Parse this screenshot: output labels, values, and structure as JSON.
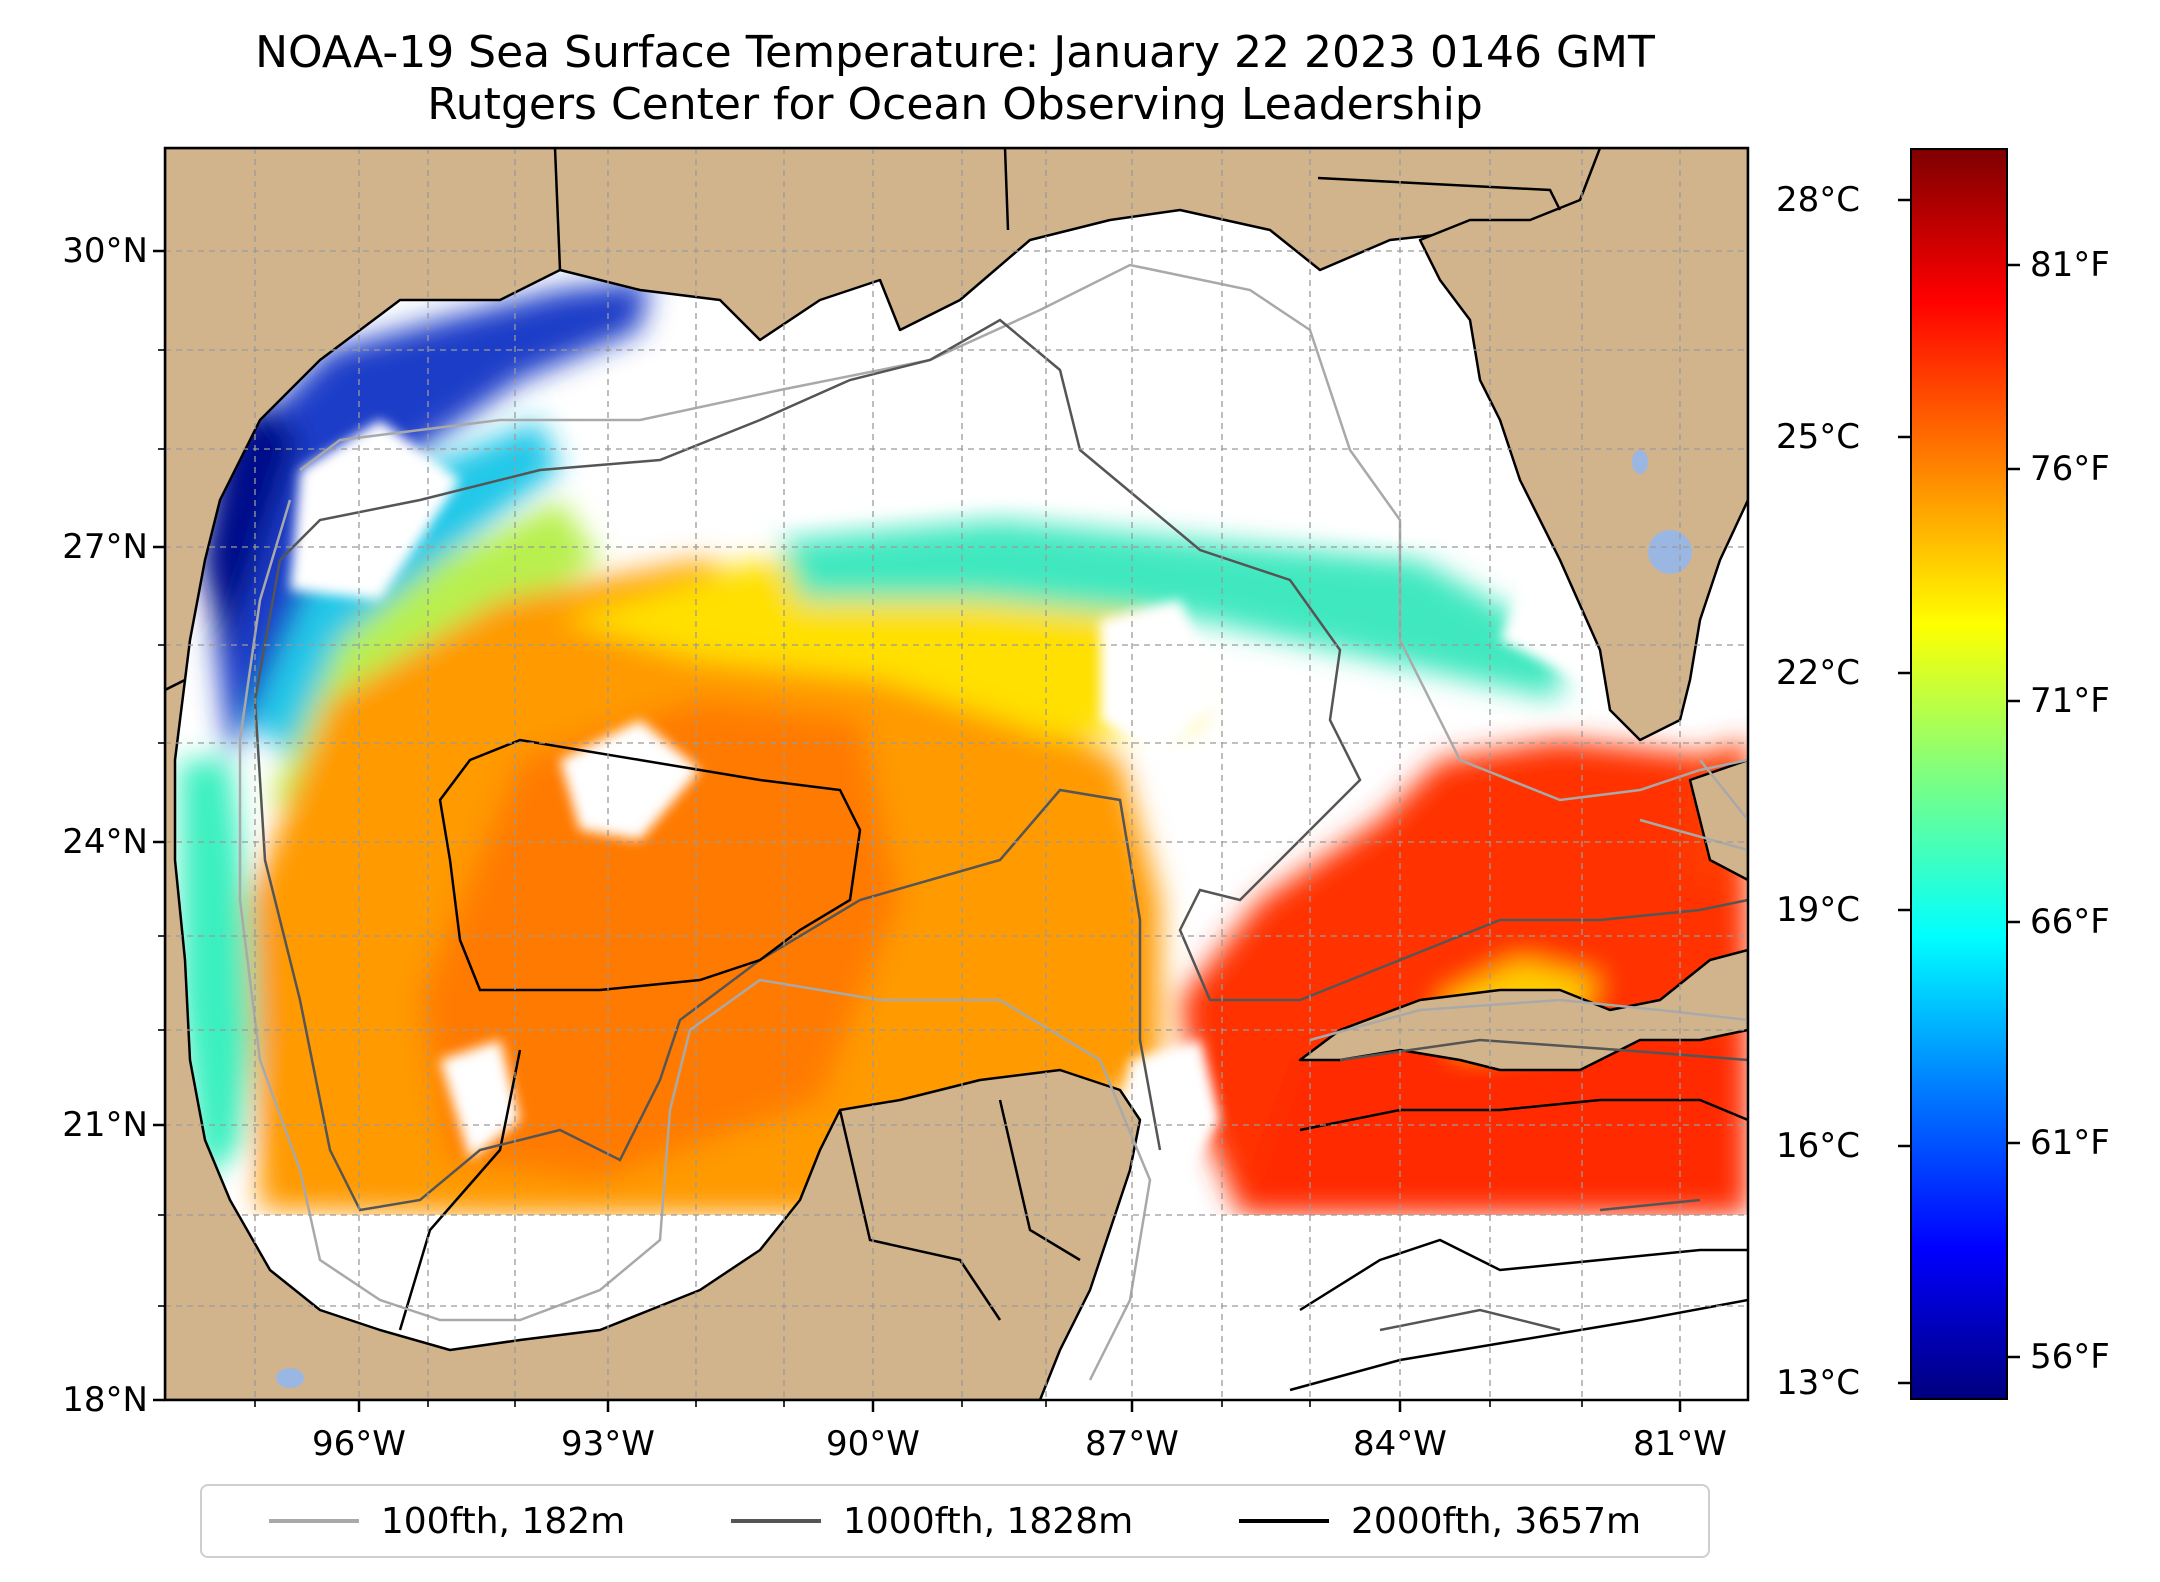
{
  "title": {
    "line1": "NOAA-19 Sea Surface Temperature: January 22 2023 0146 GMT",
    "line2": "Rutgers Center for Ocean Observing Leadership"
  },
  "map": {
    "lat_labels": [
      "30°N",
      "27°N",
      "24°N",
      "21°N",
      "18°N"
    ],
    "lon_labels": [
      "96°W",
      "93°W",
      "90°W",
      "87°W",
      "84°W",
      "81°W"
    ],
    "lat_range": [
      18,
      31
    ],
    "lon_range": [
      98.3,
      80.5
    ],
    "land_color": "#d2b48c",
    "no_data_color": "#ffffff",
    "inland_water_color": "#9ab7e3",
    "grid": "dashed"
  },
  "legend": {
    "items": [
      {
        "label": "100fth, 182m",
        "color": "#a9a9a9"
      },
      {
        "label": "1000fth, 1828m",
        "color": "#555555"
      },
      {
        "label": "2000fth, 3657m",
        "color": "#000000"
      }
    ]
  },
  "colorbar": {
    "celsius_labels": [
      "28°C",
      "25°C",
      "22°C",
      "19°C",
      "16°C",
      "13°C"
    ],
    "fahrenheit_labels": [
      "81°F",
      "76°F",
      "71°F",
      "66°F",
      "61°F",
      "56°F"
    ],
    "colormap": "jet",
    "range_celsius": [
      12.8,
      28.6
    ]
  }
}
